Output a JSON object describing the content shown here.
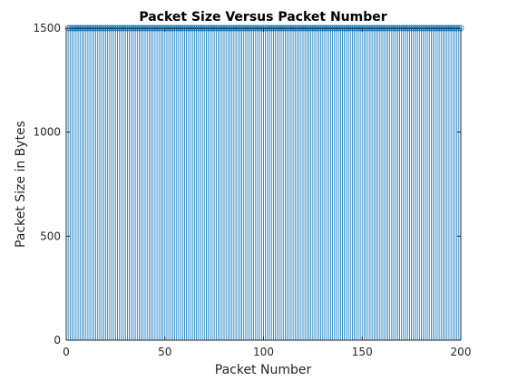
{
  "chart_data": {
    "type": "stem",
    "title": "Packet Size Versus Packet Number",
    "xlabel": "Packet Number",
    "ylabel": "Packet Size in Bytes",
    "xlim": [
      0,
      200
    ],
    "ylim": [
      0,
      1500
    ],
    "xticks": [
      0,
      50,
      100,
      150,
      200
    ],
    "yticks": [
      0,
      500,
      1000,
      1500
    ],
    "grid": false,
    "legend": "none",
    "marker": "circle",
    "color": "#0072BD",
    "series": [
      {
        "x_start": 1,
        "x_end": 200,
        "x_step": 1,
        "value": 1500
      }
    ]
  }
}
